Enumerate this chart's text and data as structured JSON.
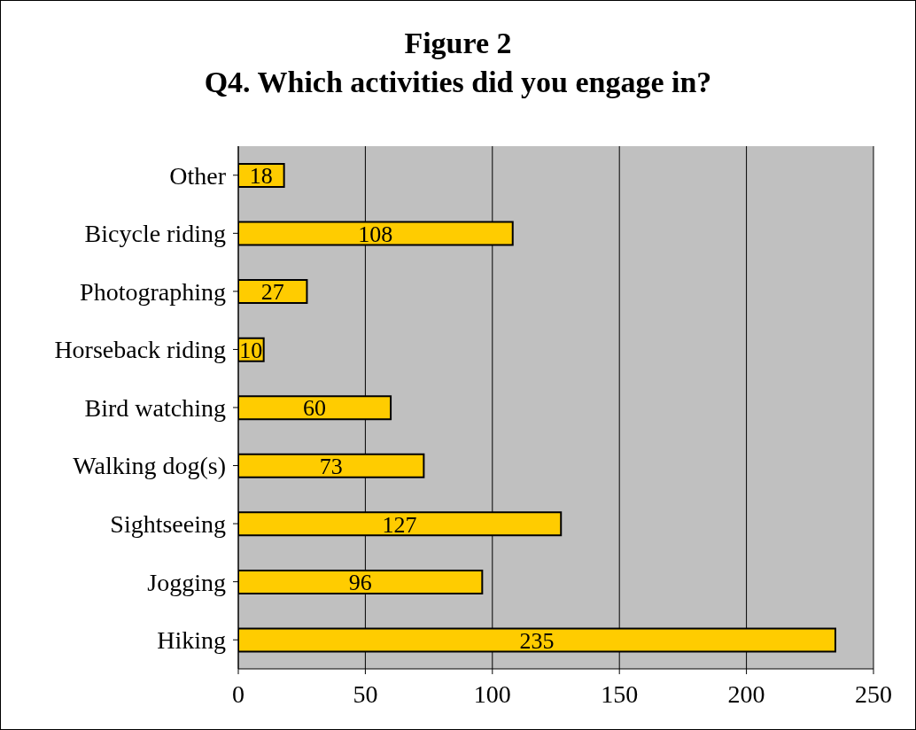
{
  "chart_data": {
    "type": "bar",
    "orientation": "horizontal",
    "title": "Figure 2",
    "subtitle": "Q4. Which activities did you engage in?",
    "categories": [
      "Other",
      "Bicycle riding",
      "Photographing",
      "Horseback riding",
      "Bird watching",
      "Walking dog(s)",
      "Sightseeing",
      "Jogging",
      "Hiking"
    ],
    "values": [
      18,
      108,
      27,
      10,
      60,
      73,
      127,
      96,
      235
    ],
    "color": "#ffcc00",
    "xlim": [
      0,
      250
    ],
    "xticks": [
      0,
      50,
      100,
      150,
      200,
      250
    ],
    "grid": "x",
    "data_labels": true
  }
}
